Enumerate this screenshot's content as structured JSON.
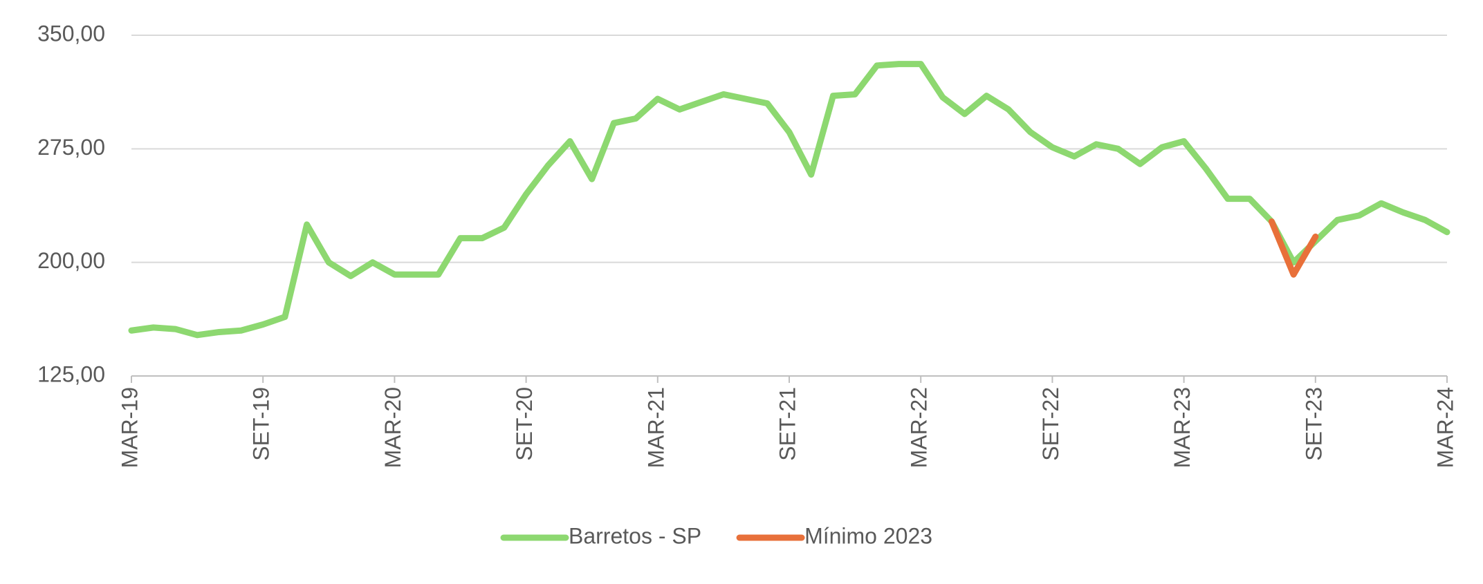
{
  "chart_data": {
    "type": "line",
    "categories": [
      "MAR-19",
      null,
      null,
      null,
      null,
      null,
      "SET-19",
      null,
      null,
      null,
      null,
      null,
      "MAR-20",
      null,
      null,
      null,
      null,
      null,
      "SET-20",
      null,
      null,
      null,
      null,
      null,
      "MAR-21",
      null,
      null,
      null,
      null,
      null,
      "SET-21",
      null,
      null,
      null,
      null,
      null,
      "MAR-22",
      null,
      null,
      null,
      null,
      null,
      "SET-22",
      null,
      null,
      null,
      null,
      null,
      "MAR-23",
      null,
      null,
      null,
      null,
      null,
      "SET-23",
      null,
      null,
      null,
      null,
      null,
      "MAR-24"
    ],
    "series": [
      {
        "name": "Barretos - SP",
        "color": "#8dd870",
        "values": [
          155,
          157,
          156,
          152,
          154,
          155,
          159,
          164,
          225,
          200,
          191,
          200,
          192,
          192,
          192,
          216,
          216,
          223,
          245,
          264,
          280,
          255,
          292,
          295,
          308,
          301,
          306,
          311,
          308,
          305,
          286,
          258,
          310,
          311,
          330,
          331,
          331,
          309,
          298,
          310,
          301,
          286,
          276,
          270,
          278,
          275,
          265,
          276,
          280,
          262,
          242,
          242,
          227,
          200,
          214,
          228,
          231,
          239,
          233,
          228,
          220
        ]
      },
      {
        "name": "Mínimo 2023",
        "color": "#e8703a",
        "values": [
          null,
          null,
          null,
          null,
          null,
          null,
          null,
          null,
          null,
          null,
          null,
          null,
          null,
          null,
          null,
          null,
          null,
          null,
          null,
          null,
          null,
          null,
          null,
          null,
          null,
          null,
          null,
          null,
          null,
          null,
          null,
          null,
          null,
          null,
          null,
          null,
          null,
          null,
          null,
          null,
          null,
          null,
          null,
          null,
          null,
          null,
          null,
          null,
          null,
          null,
          null,
          null,
          227,
          192,
          217,
          null,
          null,
          null,
          null,
          null,
          null
        ]
      }
    ],
    "ylim": [
      125,
      350
    ],
    "yticks": [
      {
        "value": 125,
        "label": "125,00"
      },
      {
        "value": 200,
        "label": "200,00"
      },
      {
        "value": 275,
        "label": "275,00"
      },
      {
        "value": 350,
        "label": "350,00"
      }
    ],
    "grid": true,
    "legend": "bottom"
  }
}
